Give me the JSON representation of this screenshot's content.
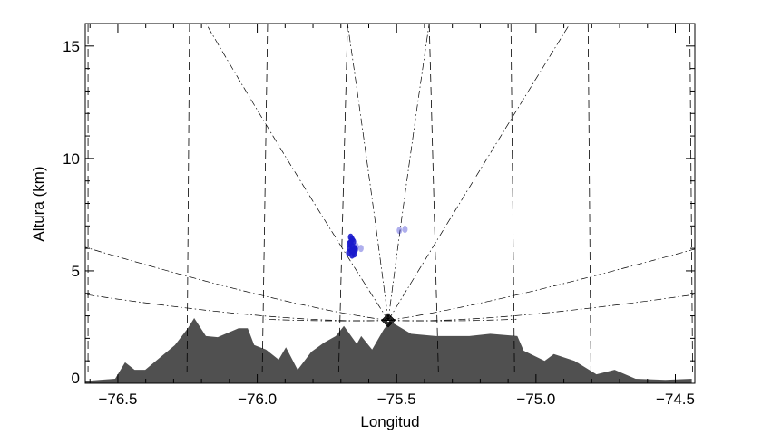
{
  "chart_data": {
    "type": "area",
    "title": "",
    "xlabel": "Longitud",
    "ylabel": "Altura (km)",
    "xlim": [
      -76.617,
      -74.43
    ],
    "ylim": [
      0,
      16
    ],
    "xticks": [
      -76.5,
      -76.0,
      -75.5,
      -75.0,
      -74.5
    ],
    "xtick_labels": [
      "−76.5",
      "−76.0",
      "−75.5",
      "−75.0",
      "−74.5"
    ],
    "x_minor_step": 0.1,
    "yticks": [
      0,
      5,
      10,
      15
    ],
    "ytick_labels": [
      "0",
      "5",
      "10",
      "15"
    ],
    "y_minor_step": 1,
    "grid": false,
    "colors": {
      "terrain": "#505050",
      "echo": "#1a1acc",
      "lines": "#000000"
    },
    "terrain": {
      "lon": [
        -76.617,
        -76.565,
        -76.51,
        -76.474,
        -76.44,
        -76.402,
        -76.295,
        -76.249,
        -76.226,
        -76.184,
        -76.142,
        -76.067,
        -76.034,
        -76.011,
        -75.969,
        -75.923,
        -75.897,
        -75.855,
        -75.806,
        -75.761,
        -75.718,
        -75.689,
        -75.643,
        -75.627,
        -75.588,
        -75.546,
        -75.523,
        -75.448,
        -75.36,
        -75.239,
        -75.164,
        -75.067,
        -75.044,
        -74.969,
        -74.936,
        -74.862,
        -74.816,
        -74.783,
        -74.718,
        -74.643,
        -74.536,
        -74.441
      ],
      "alt": [
        0.1,
        0.15,
        0.2,
        0.93,
        0.6,
        0.6,
        1.7,
        2.45,
        2.9,
        2.1,
        2.05,
        2.45,
        2.45,
        1.7,
        1.5,
        1.05,
        1.6,
        0.6,
        1.4,
        1.8,
        2.1,
        2.55,
        1.75,
        2.1,
        1.5,
        2.4,
        2.75,
        2.2,
        2.1,
        2.1,
        2.2,
        2.1,
        1.45,
        1.0,
        1.3,
        1.0,
        0.65,
        0.4,
        0.6,
        0.2,
        0.15,
        0.2
      ]
    },
    "radar": {
      "lon": -75.53,
      "alt": 2.8,
      "marker": "diamond"
    },
    "range_lines": [
      {
        "lon_top": -76.607,
        "lon_bottom": -76.607
      },
      {
        "lon_top": -76.243,
        "lon_bottom": -76.252
      },
      {
        "lon_top": -75.963,
        "lon_bottom": -75.982
      },
      {
        "lon_top": -75.676,
        "lon_bottom": -75.708
      },
      {
        "lon_top": -75.383,
        "lon_bottom": -75.35
      },
      {
        "lon_top": -75.09,
        "lon_bottom": -75.077
      },
      {
        "lon_top": -74.813,
        "lon_bottom": -74.803
      },
      {
        "lon_top": -74.448,
        "lon_bottom": -74.438
      }
    ],
    "range_line_alt": [
      0.5,
      16
    ],
    "beams": [
      {
        "lon": [
          -75.53,
          -75.86,
          -76.184
        ],
        "alt": [
          2.8,
          9.3,
          16
        ]
      },
      {
        "lon": [
          -75.53,
          -75.6,
          -75.676
        ],
        "alt": [
          2.8,
          9.3,
          16
        ]
      },
      {
        "lon": [
          -75.53,
          -75.46,
          -75.383
        ],
        "alt": [
          2.8,
          9.3,
          16
        ]
      },
      {
        "lon": [
          -75.53,
          -75.21,
          -74.878
        ],
        "alt": [
          2.8,
          9.3,
          16
        ]
      },
      {
        "lon": [
          -75.53,
          -75.98,
          -76.617
        ],
        "alt": [
          2.8,
          3.9,
          6.05
        ]
      },
      {
        "lon": [
          -75.53,
          -75.98,
          -76.617
        ],
        "alt": [
          2.8,
          3.0,
          3.95
        ]
      },
      {
        "lon": [
          -75.53,
          -75.08,
          -74.43
        ],
        "alt": [
          2.8,
          3.9,
          5.97
        ]
      },
      {
        "lon": [
          -75.53,
          -75.08,
          -74.43
        ],
        "alt": [
          2.8,
          3.0,
          3.95
        ]
      },
      {
        "lon": [
          -75.53,
          -75.75,
          -75.97
        ],
        "alt": [
          2.8,
          2.78,
          2.85
        ]
      },
      {
        "lon": [
          -75.53,
          -75.3,
          -75.07
        ],
        "alt": [
          2.8,
          2.78,
          2.85
        ]
      }
    ],
    "echo_points": {
      "lon": [
        -75.665,
        -75.66,
        -75.655,
        -75.67,
        -75.66,
        -75.65,
        -75.668,
        -75.662,
        -75.655,
        -75.648,
        -75.672,
        -75.66,
        -75.652,
        -75.665,
        -75.645,
        -75.628,
        -75.49,
        -75.47
      ],
      "alt": [
        6.5,
        6.4,
        6.3,
        6.2,
        6.1,
        6.0,
        6.0,
        5.9,
        5.85,
        5.95,
        5.8,
        5.7,
        5.75,
        6.25,
        6.1,
        6.0,
        6.8,
        6.85
      ]
    }
  }
}
